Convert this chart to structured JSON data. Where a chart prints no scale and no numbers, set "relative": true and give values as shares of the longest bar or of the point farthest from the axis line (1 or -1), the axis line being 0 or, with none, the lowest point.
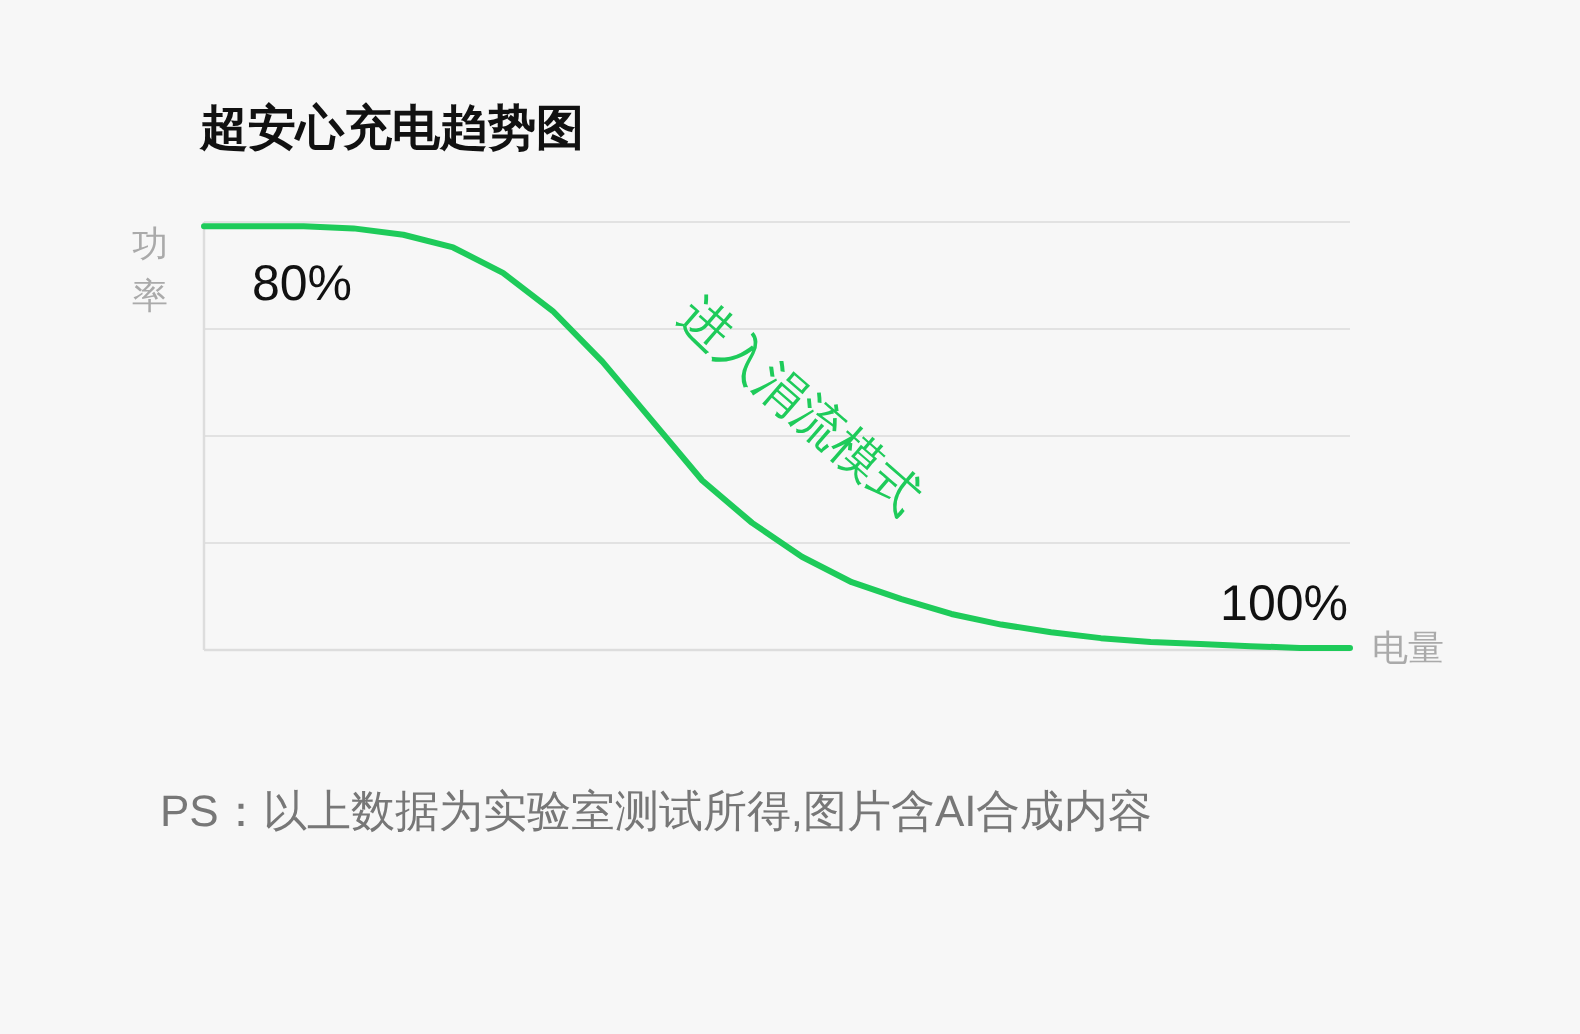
{
  "chart_data": {
    "type": "line",
    "title": "超安心充电趋势图",
    "xlabel": "电量",
    "ylabel": "功率",
    "relative": true,
    "grid": "y",
    "categories": [
      null,
      null,
      null,
      null,
      null,
      null,
      null,
      null,
      null,
      null,
      null,
      null,
      null,
      null,
      null,
      null,
      null,
      null,
      null,
      null,
      null,
      null,
      null,
      null
    ],
    "series": [
      {
        "color": "#1ecb5a",
        "values": [
          1,
          1,
          1,
          0.995,
          0.98,
          0.95,
          0.89,
          0.8,
          0.68,
          0.54,
          0.4,
          0.3,
          0.22,
          0.16,
          0.12,
          0.085,
          0.06,
          0.042,
          0.028,
          0.019,
          0.014,
          0.009,
          0.005,
          0.005
        ]
      }
    ],
    "annotations": [
      "80%",
      "进入涓流模式",
      "100%",
      "PS：以上数据为实验室测试所得,图片含AI合成内容"
    ]
  }
}
